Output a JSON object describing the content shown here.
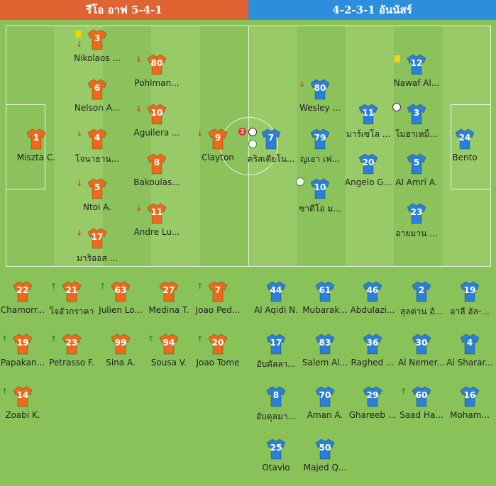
{
  "header": {
    "home_label": "รีโอ อาฟ 5-4-1",
    "away_label": "4-2-3-1 อันนัสร์"
  },
  "colors": {
    "home_shirt": "#ee6a1a",
    "away_shirt": "#2a7fd6",
    "pitch": "#8bc25b"
  },
  "home_lineup": [
    {
      "num": "3",
      "name": "Nikolaos ...",
      "events": [
        "yellow-card",
        "sub-off"
      ]
    },
    {
      "num": "6",
      "name": "Nelson A...",
      "events": []
    },
    {
      "num": "4",
      "name": "โจนาธาน...",
      "events": [
        "sub-off"
      ]
    },
    {
      "num": "5",
      "name": "Ntoi A.",
      "events": [
        "sub-off"
      ]
    },
    {
      "num": "17",
      "name": "มาริออส ...",
      "events": [
        "sub-off"
      ]
    },
    {
      "num": "80",
      "name": "Pohlman...",
      "events": [
        "sub-off"
      ]
    },
    {
      "num": "10",
      "name": "Aguilera ...",
      "events": [
        "sub-off"
      ]
    },
    {
      "num": "8",
      "name": "Bakoulas...",
      "events": []
    },
    {
      "num": "11",
      "name": "Andre Lu...",
      "events": [
        "sub-off"
      ]
    },
    {
      "num": "9",
      "name": "Clayton",
      "events": [
        "sub-off"
      ]
    },
    {
      "num": "1",
      "name": "Miszta C.",
      "events": []
    }
  ],
  "away_lineup": [
    {
      "num": "7",
      "name": "คริสเตียโน...",
      "goals": "2",
      "events": [
        "goal-badge",
        "goal",
        "own-goal"
      ]
    },
    {
      "num": "80",
      "name": "Wesley ...",
      "events": [
        "sub-off"
      ]
    },
    {
      "num": "79",
      "name": "ญเอา เฟ...",
      "events": []
    },
    {
      "num": "10",
      "name": "ซาดีโอ ม...",
      "events": [
        "own-goal"
      ]
    },
    {
      "num": "11",
      "name": "มาร์เซโล ...",
      "events": []
    },
    {
      "num": "20",
      "name": "Angelo G...",
      "events": []
    },
    {
      "num": "12",
      "name": "Nawaf Al...",
      "events": [
        "yellow-card"
      ]
    },
    {
      "num": "3",
      "name": "โมฮาเหม็...",
      "events": [
        "goal"
      ]
    },
    {
      "num": "5",
      "name": "Al Amri A.",
      "events": []
    },
    {
      "num": "23",
      "name": "อายมาน ...",
      "events": []
    },
    {
      "num": "24",
      "name": "Bento",
      "events": []
    }
  ],
  "home_bench": [
    {
      "num": "22",
      "name": "Chamorr...",
      "events": []
    },
    {
      "num": "21",
      "name": "โจอัวกราคา",
      "events": [
        "sub-on"
      ]
    },
    {
      "num": "63",
      "name": "Julien Lo...",
      "events": [
        "sub-on"
      ]
    },
    {
      "num": "27",
      "name": "Medina T.",
      "events": []
    },
    {
      "num": "7",
      "name": "Joao Ped...",
      "events": [
        "sub-on"
      ]
    },
    {
      "num": "19",
      "name": "Papakan...",
      "events": [
        "sub-on"
      ]
    },
    {
      "num": "23",
      "name": "Petrasso F.",
      "events": [
        "sub-on"
      ]
    },
    {
      "num": "99",
      "name": "Sina A.",
      "events": []
    },
    {
      "num": "94",
      "name": "Sousa V.",
      "events": [
        "sub-on"
      ]
    },
    {
      "num": "20",
      "name": "Joao Tome",
      "events": [
        "sub-on"
      ]
    },
    {
      "num": "14",
      "name": "Zoabi K.",
      "events": [
        "sub-on"
      ]
    }
  ],
  "away_bench": [
    {
      "num": "44",
      "name": "Al Aqidi N.",
      "events": []
    },
    {
      "num": "61",
      "name": "Mubarak...",
      "events": []
    },
    {
      "num": "46",
      "name": "Abdulazi...",
      "events": []
    },
    {
      "num": "2",
      "name": "สุลต่าน อั...",
      "events": []
    },
    {
      "num": "19",
      "name": "อาลี อัล-...",
      "events": []
    },
    {
      "num": "17",
      "name": "อับดัลลา...",
      "events": []
    },
    {
      "num": "83",
      "name": "Salem Al...",
      "events": []
    },
    {
      "num": "36",
      "name": "Raghed ...",
      "events": []
    },
    {
      "num": "30",
      "name": "Al Nemer...",
      "events": []
    },
    {
      "num": "4",
      "name": "Al Sharar...",
      "events": []
    },
    {
      "num": "8",
      "name": "อับดุลมา...",
      "events": []
    },
    {
      "num": "70",
      "name": "Aman A.",
      "events": []
    },
    {
      "num": "29",
      "name": "Ghareeb ...",
      "events": []
    },
    {
      "num": "60",
      "name": "Saad Ha...",
      "events": [
        "sub-on"
      ]
    },
    {
      "num": "16",
      "name": "Moham...",
      "events": []
    },
    {
      "num": "25",
      "name": "Otavio",
      "events": []
    },
    {
      "num": "50",
      "name": "Majed Q...",
      "events": []
    }
  ]
}
